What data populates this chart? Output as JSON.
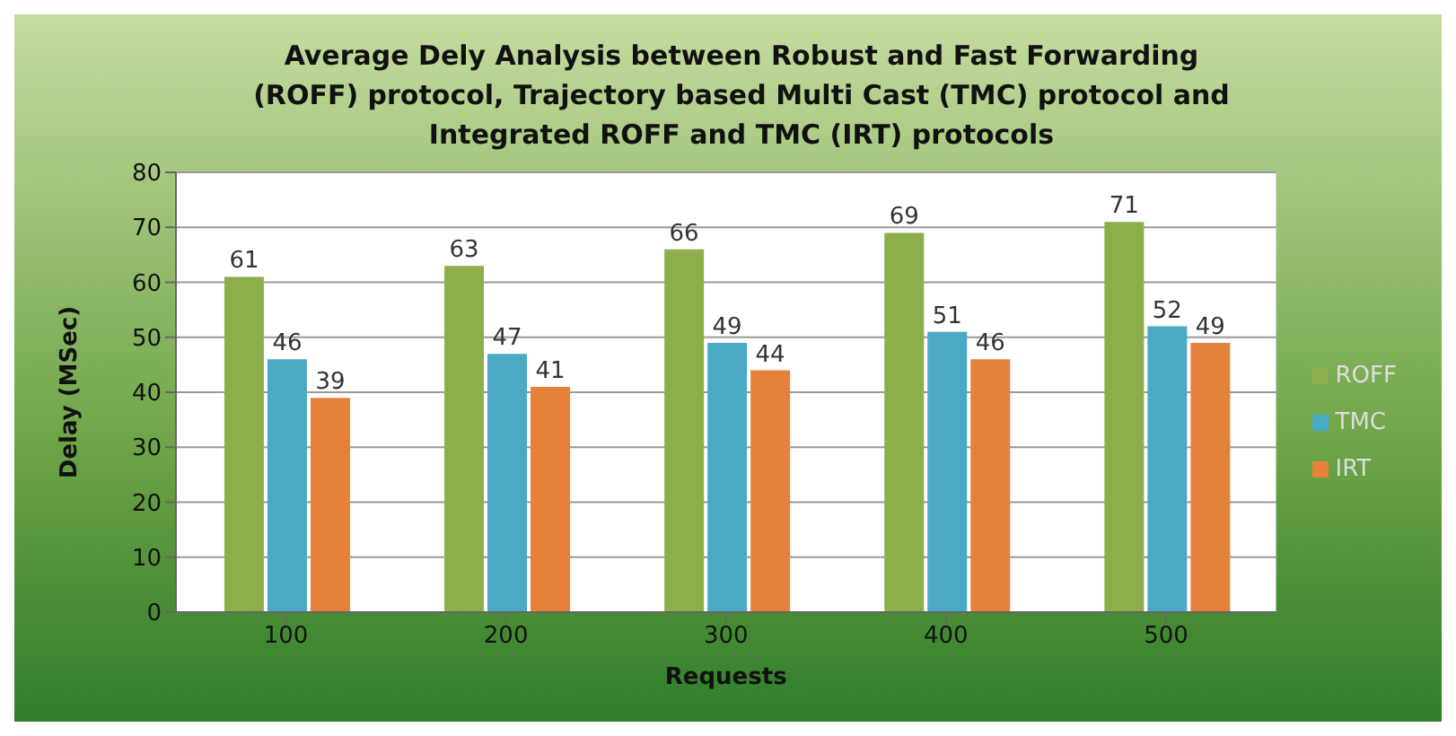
{
  "chart_data": {
    "type": "bar",
    "title": "Average Dely Analysis between Robust and Fast Forwarding (ROFF) protocol, Trajectory based Multi Cast (TMC) protocol and Integrated ROFF and TMC (IRT) protocols",
    "xlabel": "Requests",
    "ylabel": "Delay (MSec)",
    "categories": [
      "100",
      "200",
      "300",
      "400",
      "500"
    ],
    "series": [
      {
        "name": "ROFF",
        "color": "#8cae4b",
        "values": [
          61,
          63,
          66,
          69,
          71
        ]
      },
      {
        "name": "TMC",
        "color": "#4aa9c5",
        "values": [
          46,
          47,
          49,
          51,
          52
        ]
      },
      {
        "name": "IRT",
        "color": "#e4823c",
        "values": [
          39,
          41,
          44,
          46,
          49
        ]
      }
    ],
    "ylim": [
      0,
      80
    ],
    "yticks": [
      0,
      10,
      20,
      30,
      40,
      50,
      60,
      70,
      80
    ],
    "grid": "y",
    "legend": "right",
    "data_labels": true
  }
}
